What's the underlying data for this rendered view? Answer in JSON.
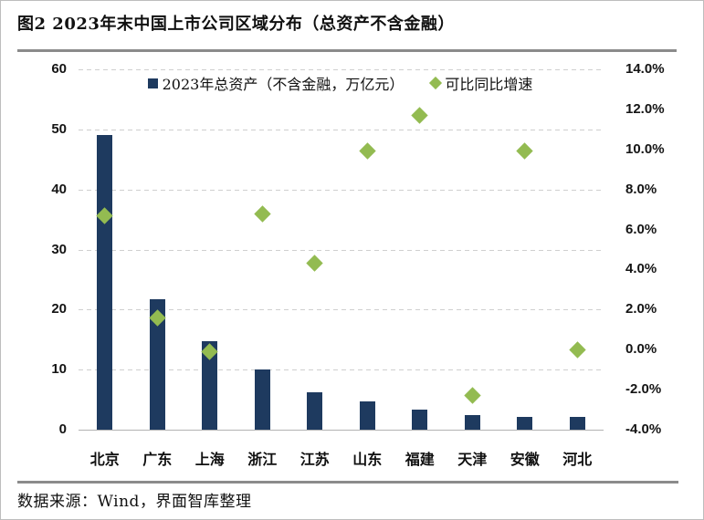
{
  "colors": {
    "bar": "#1e3a5f",
    "scatter": "#93bb51",
    "gridline": "#cfcfcf",
    "divider": "#8b8b8b"
  },
  "chart_data": {
    "type": "combo-bar-scatter",
    "title": "图2 2023年末中国上市公司区域分布（总资产不含金融）",
    "categories": [
      "北京",
      "广东",
      "上海",
      "浙江",
      "江苏",
      "山东",
      "福建",
      "天津",
      "安徽",
      "河北"
    ],
    "series": [
      {
        "name": "2023年总资产（不含金融，万亿元）",
        "type": "bar",
        "axis": "left",
        "values": [
          49.0,
          21.7,
          14.7,
          10.0,
          6.2,
          4.7,
          3.4,
          2.4,
          2.1,
          2.1
        ]
      },
      {
        "name": "可比同比增速",
        "type": "scatter",
        "axis": "right",
        "unit": "%",
        "values": [
          6.7,
          1.6,
          -0.1,
          6.8,
          4.3,
          9.9,
          11.7,
          -2.3,
          9.9,
          0.0
        ]
      }
    ],
    "left_axis": {
      "min": 0,
      "max": 60,
      "ticks": [
        0,
        10,
        20,
        30,
        40,
        50,
        60
      ]
    },
    "right_axis": {
      "min": -4,
      "max": 14,
      "ticks": [
        14,
        12,
        10,
        8,
        6,
        4,
        2,
        0,
        -2,
        -4
      ],
      "tick_labels": [
        "14.0%",
        "12.0%",
        "10.0%",
        "8.0%",
        "6.0%",
        "4.0%",
        "2.0%",
        "0.0%",
        "-2.0%",
        "-4.0%"
      ]
    },
    "grid": {
      "horizontal": "dashed"
    },
    "legend_position": "top-center",
    "source_note": "数据来源：Wind，界面智库整理"
  }
}
